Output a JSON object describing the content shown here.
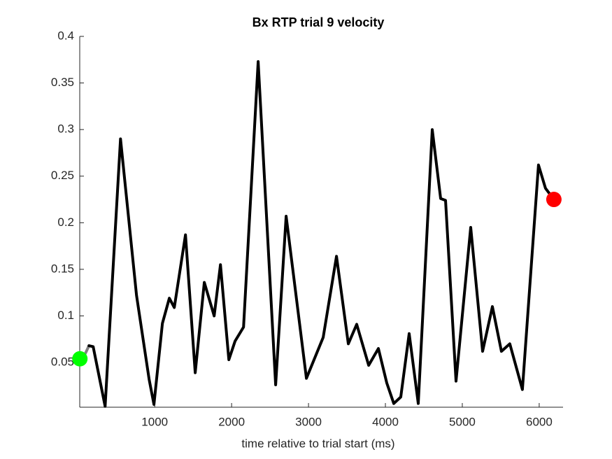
{
  "chart_data": {
    "type": "line",
    "title": "Bx  RTP trial 9 velocity",
    "x_label": "time relative to trial start (ms)",
    "xlim": [
      25,
      6310
    ],
    "ylim": [
      0.002,
      0.4
    ],
    "xticks": [
      1000,
      2000,
      3000,
      4000,
      5000,
      6000
    ],
    "yticks": [
      0.05,
      0.1,
      0.15,
      0.2,
      0.25,
      0.3,
      0.35,
      0.4
    ],
    "series": [
      {
        "color": "#808080",
        "x": [
          27,
          100,
          145
        ],
        "values": [
          0.054,
          0.06,
          0.068
        ]
      },
      {
        "color": "#000000",
        "x": [
          145,
          200,
          355,
          555,
          764,
          927,
          990,
          1100,
          1190,
          1255,
          1400,
          1527,
          1645,
          1773,
          1855,
          1964,
          2045,
          2155,
          2345,
          2573,
          2709,
          2973,
          3191,
          3364,
          3518,
          3627,
          3782,
          3909,
          4018,
          4109,
          4200,
          4309,
          4427,
          4609,
          4718,
          4782,
          4918,
          5109,
          5264,
          5391,
          5509,
          5618,
          5782,
          5991,
          6082,
          6191
        ],
        "values": [
          0.068,
          0.067,
          0.003,
          0.29,
          0.122,
          0.032,
          0.005,
          0.092,
          0.119,
          0.109,
          0.187,
          0.039,
          0.136,
          0.1,
          0.155,
          0.053,
          0.073,
          0.088,
          0.373,
          0.026,
          0.207,
          0.033,
          0.077,
          0.164,
          0.07,
          0.091,
          0.047,
          0.065,
          0.028,
          0.006,
          0.013,
          0.081,
          0.006,
          0.3,
          0.226,
          0.224,
          0.03,
          0.195,
          0.062,
          0.11,
          0.062,
          0.07,
          0.021,
          0.262,
          0.237,
          0.225
        ]
      }
    ],
    "markers": [
      {
        "x": 27,
        "y": 0.054,
        "color": "#00ff00"
      },
      {
        "x": 6191,
        "y": 0.225,
        "color": "#ff0000"
      }
    ]
  }
}
